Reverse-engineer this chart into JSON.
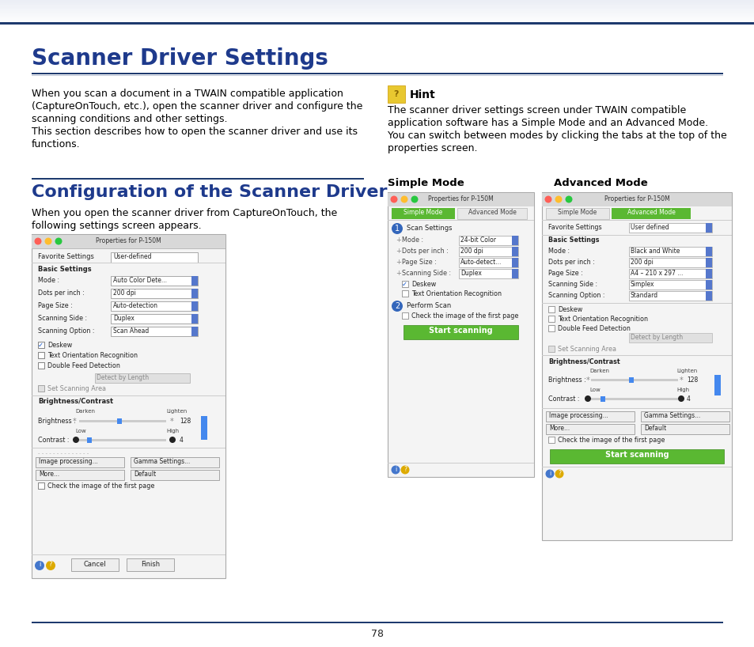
{
  "page_bg": "#ffffff",
  "top_bar_color": "#1e3a6e",
  "header_title": "Scanner Driver Settings",
  "header_title_color": "#1e3a8c",
  "section_line_color": "#1e3a6e",
  "body_text_color": "#000000",
  "body_text_left_lines": [
    "When you scan a document in a TWAIN compatible application",
    "(CaptureOnTouch, etc.), open the scanner driver and configure the",
    "scanning conditions and other settings.",
    "This section describes how to open the scanner driver and use its",
    "functions."
  ],
  "section2_title": "Configuration of the Scanner Driver",
  "section2_title_color": "#1e3a8c",
  "section2_body_lines": [
    "When you open the scanner driver from CaptureOnTouch, the",
    "following settings screen appears."
  ],
  "hint_title": "Hint",
  "hint_body_lines": [
    "The scanner driver settings screen under TWAIN compatible",
    "application software has a Simple Mode and an Advanced Mode.",
    "You can switch between modes by clicking the tabs at the top of the",
    "properties screen."
  ],
  "simple_mode_label": "Simple Mode",
  "advanced_mode_label": "Advanced Mode",
  "page_number": "78",
  "footer_line_color": "#1e3a6e",
  "green_btn_color": "#5ab832",
  "green_btn_edge": "#3a8a1a",
  "traffic_red": "#ff5f57",
  "traffic_yellow": "#ffbd2e",
  "traffic_green": "#28c840",
  "tab_active_color": "#5ab832",
  "tab_inactive_color": "#e8e8e8",
  "window_bg": "#f0f0f0",
  "window_titlebar": "#d0d0d0",
  "dropdown_bg": "#ffffff",
  "hint_icon_color": "#e8c830"
}
